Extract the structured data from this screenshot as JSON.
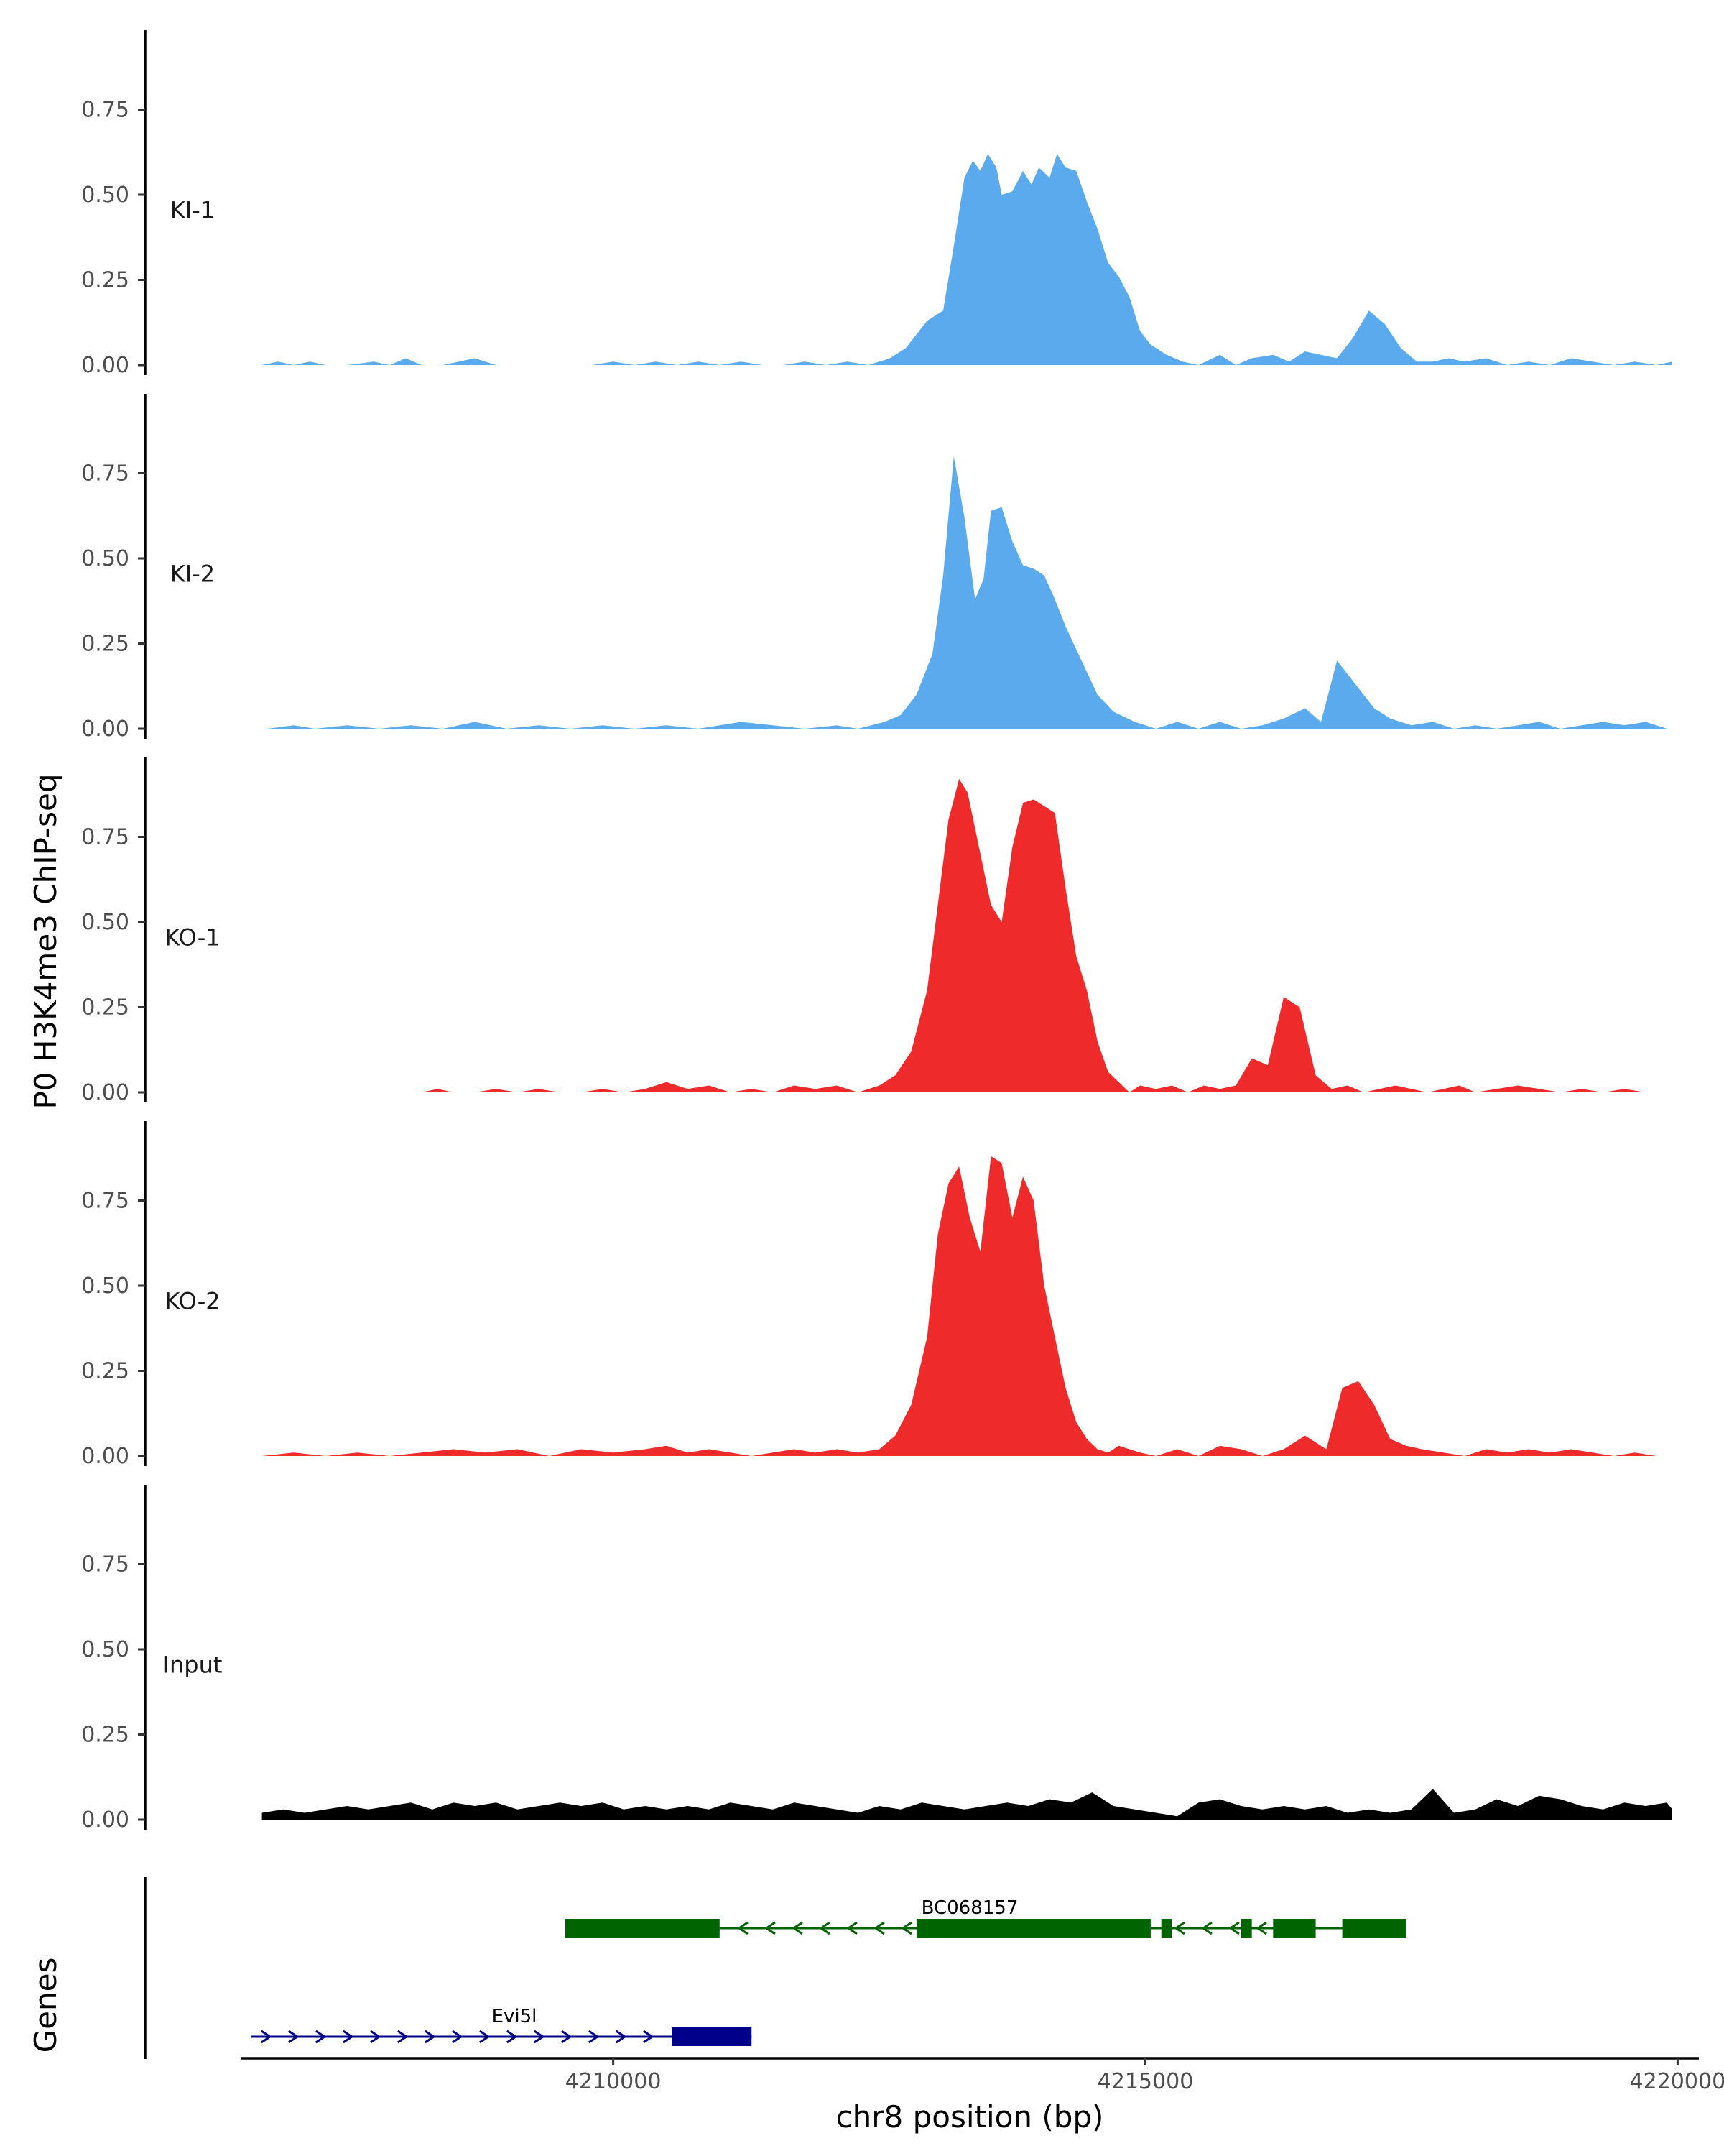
{
  "chart_data": {
    "type": "area",
    "title": "",
    "ylabel": "P0 H3K4me3 ChIP-seq",
    "xlabel": "chr8 position (bp)",
    "xlim": [
      4206500,
      4220200
    ],
    "ylim": [
      0,
      0.97
    ],
    "yticks": [
      0,
      0.25,
      0.5,
      0.75
    ],
    "ytick_labels": [
      "0.00",
      "0.25",
      "0.50",
      "0.75"
    ],
    "xticks": [
      4210000,
      4215000,
      4220000
    ],
    "xtick_labels": [
      "4210000",
      "4215000",
      "4220000"
    ],
    "grid": false,
    "legend": "none",
    "colors": {
      "KI": "#5aaaed",
      "KO": "#ee2a2b",
      "Input": "#000000"
    },
    "tracks": [
      {
        "name": "KI-1",
        "color": "#5aaaed",
        "x": [
          4206700,
          4206850,
          4207000,
          4207150,
          4207300,
          4207500,
          4207750,
          4207900,
          4208050,
          4208200,
          4208400,
          4208550,
          4208700,
          4208900,
          4209100,
          4209300,
          4209600,
          4209800,
          4210000,
          4210200,
          4210400,
          4210600,
          4210800,
          4211000,
          4211200,
          4211400,
          4211600,
          4211800,
          4212000,
          4212200,
          4212400,
          4212600,
          4212750,
          4212950,
          4213100,
          4213200,
          4213300,
          4213380,
          4213450,
          4213520,
          4213600,
          4213650,
          4213750,
          4213850,
          4213930,
          4214000,
          4214100,
          4214170,
          4214250,
          4214350,
          4214450,
          4214550,
          4214650,
          4214750,
          4214850,
          4214950,
          4215050,
          4215200,
          4215350,
          4215500,
          4215700,
          4215850,
          4216000,
          4216200,
          4216350,
          4216500,
          4216650,
          4216800,
          4216950,
          4217100,
          4217250,
          4217400,
          4217550,
          4217700,
          4217850,
          4218000,
          4218200,
          4218400,
          4218600,
          4218800,
          4219000,
          4219200,
          4219400,
          4219600,
          4219800,
          4219950
        ],
        "y": [
          0,
          0.01,
          0,
          0.01,
          0,
          0,
          0.01,
          0,
          0.02,
          0,
          0,
          0.01,
          0.02,
          0,
          0,
          0,
          0,
          0,
          0.01,
          0,
          0.01,
          0,
          0.01,
          0,
          0.01,
          0,
          0,
          0.01,
          0,
          0.01,
          0,
          0.02,
          0.05,
          0.13,
          0.16,
          0.35,
          0.55,
          0.6,
          0.57,
          0.62,
          0.58,
          0.5,
          0.51,
          0.57,
          0.53,
          0.58,
          0.55,
          0.62,
          0.58,
          0.57,
          0.48,
          0.4,
          0.3,
          0.26,
          0.2,
          0.1,
          0.06,
          0.03,
          0.01,
          0,
          0.03,
          0,
          0.02,
          0.03,
          0.01,
          0.04,
          0.03,
          0.02,
          0.08,
          0.16,
          0.12,
          0.05,
          0.01,
          0.01,
          0.02,
          0.01,
          0.02,
          0,
          0.01,
          0,
          0.02,
          0.01,
          0,
          0.01,
          0,
          0.01
        ]
      },
      {
        "name": "KI-2",
        "color": "#5aaaed",
        "x": [
          4206750,
          4207000,
          4207200,
          4207500,
          4207800,
          4208100,
          4208400,
          4208700,
          4209000,
          4209300,
          4209600,
          4209900,
          4210200,
          4210500,
          4210800,
          4211000,
          4211200,
          4211500,
          4211800,
          4212100,
          4212300,
          4212550,
          4212700,
          4212850,
          4213000,
          4213100,
          4213200,
          4213300,
          4213400,
          4213480,
          4213550,
          4213650,
          4213750,
          4213850,
          4213950,
          4214050,
          4214150,
          4214250,
          4214400,
          4214550,
          4214700,
          4214900,
          4215100,
          4215300,
          4215500,
          4215700,
          4215900,
          4216100,
          4216300,
          4216500,
          4216650,
          4216800,
          4217000,
          4217150,
          4217300,
          4217500,
          4217700,
          4217900,
          4218100,
          4218300,
          4218500,
          4218700,
          4218900,
          4219100,
          4219300,
          4219500,
          4219700,
          4219900
        ],
        "y": [
          0,
          0.01,
          0,
          0.01,
          0,
          0.01,
          0,
          0.02,
          0,
          0.01,
          0,
          0.01,
          0,
          0.01,
          0,
          0.01,
          0.02,
          0.01,
          0,
          0.01,
          0,
          0.02,
          0.04,
          0.1,
          0.22,
          0.45,
          0.8,
          0.62,
          0.38,
          0.44,
          0.64,
          0.65,
          0.55,
          0.48,
          0.47,
          0.45,
          0.38,
          0.3,
          0.2,
          0.1,
          0.05,
          0.02,
          0,
          0.02,
          0,
          0.02,
          0,
          0.01,
          0.03,
          0.06,
          0.02,
          0.2,
          0.12,
          0.06,
          0.03,
          0.01,
          0.02,
          0,
          0.01,
          0,
          0.01,
          0.02,
          0,
          0.01,
          0.02,
          0.01,
          0.02,
          0
        ]
      },
      {
        "name": "KO-1",
        "color": "#ee2a2b",
        "x": [
          4208200,
          4208350,
          4208500,
          4208700,
          4208900,
          4209100,
          4209300,
          4209500,
          4209700,
          4209900,
          4210100,
          4210300,
          4210500,
          4210700,
          4210900,
          4211100,
          4211300,
          4211500,
          4211700,
          4211900,
          4212100,
          4212300,
          4212500,
          4212650,
          4212800,
          4212950,
          4213050,
          4213150,
          4213250,
          4213330,
          4213450,
          4213550,
          4213650,
          4213750,
          4213850,
          4213950,
          4214050,
          4214150,
          4214250,
          4214350,
          4214450,
          4214550,
          4214650,
          4214750,
          4214850,
          4214950,
          4215100,
          4215250,
          4215400,
          4215550,
          4215700,
          4215850,
          4216000,
          4216150,
          4216300,
          4216450,
          4216600,
          4216750,
          4216900,
          4217050,
          4217200,
          4217350,
          4217500,
          4217650,
          4217800,
          4217950,
          4218100,
          4218300,
          4218500,
          4218700,
          4218900,
          4219100,
          4219300,
          4219500,
          4219700,
          4219900
        ],
        "y": [
          0,
          0.01,
          0,
          0,
          0.01,
          0,
          0.01,
          0,
          0,
          0.01,
          0,
          0.01,
          0.03,
          0.01,
          0.02,
          0,
          0.01,
          0,
          0.02,
          0.01,
          0.02,
          0,
          0.02,
          0.05,
          0.12,
          0.3,
          0.55,
          0.8,
          0.92,
          0.88,
          0.7,
          0.55,
          0.5,
          0.72,
          0.85,
          0.86,
          0.84,
          0.82,
          0.6,
          0.4,
          0.3,
          0.15,
          0.06,
          0.03,
          0,
          0.02,
          0.01,
          0.02,
          0,
          0.02,
          0.01,
          0.02,
          0.1,
          0.08,
          0.28,
          0.25,
          0.05,
          0.01,
          0.02,
          0,
          0.01,
          0.02,
          0.01,
          0,
          0.01,
          0.02,
          0,
          0.01,
          0.02,
          0.01,
          0,
          0.01,
          0,
          0.01,
          0,
          0
        ]
      },
      {
        "name": "KO-2",
        "color": "#ee2a2b",
        "x": [
          4206700,
          4207000,
          4207300,
          4207600,
          4207900,
          4208200,
          4208500,
          4208800,
          4209100,
          4209400,
          4209700,
          4210000,
          4210300,
          4210500,
          4210700,
          4210900,
          4211100,
          4211300,
          4211500,
          4211700,
          4211900,
          4212100,
          4212300,
          4212500,
          4212650,
          4212800,
          4212950,
          4213050,
          4213150,
          4213250,
          4213350,
          4213450,
          4213550,
          4213650,
          4213750,
          4213850,
          4213950,
          4214050,
          4214150,
          4214250,
          4214350,
          4214450,
          4214550,
          4214650,
          4214750,
          4214850,
          4214950,
          4215100,
          4215300,
          4215500,
          4215700,
          4215900,
          4216100,
          4216300,
          4216500,
          4216700,
          4216850,
          4217000,
          4217150,
          4217300,
          4217450,
          4217600,
          4217800,
          4218000,
          4218200,
          4218400,
          4218600,
          4218800,
          4219000,
          4219200,
          4219400,
          4219600,
          4219800,
          4219950
        ],
        "y": [
          0,
          0.01,
          0,
          0.01,
          0,
          0.01,
          0.02,
          0.01,
          0.02,
          0,
          0.02,
          0.01,
          0.02,
          0.03,
          0.01,
          0.02,
          0.01,
          0,
          0.01,
          0.02,
          0.01,
          0.02,
          0.01,
          0.02,
          0.06,
          0.15,
          0.35,
          0.65,
          0.8,
          0.85,
          0.7,
          0.6,
          0.88,
          0.86,
          0.7,
          0.82,
          0.75,
          0.5,
          0.35,
          0.2,
          0.1,
          0.05,
          0.02,
          0.01,
          0.03,
          0.02,
          0.01,
          0,
          0.02,
          0,
          0.03,
          0.02,
          0,
          0.02,
          0.06,
          0.02,
          0.2,
          0.22,
          0.15,
          0.05,
          0.03,
          0.02,
          0.01,
          0,
          0.02,
          0.01,
          0.02,
          0.01,
          0.02,
          0.01,
          0,
          0.01,
          0,
          0
        ]
      },
      {
        "name": "Input",
        "color": "#000000",
        "x": [
          4206700,
          4206900,
          4207100,
          4207300,
          4207500,
          4207700,
          4207900,
          4208100,
          4208300,
          4208500,
          4208700,
          4208900,
          4209100,
          4209300,
          4209500,
          4209700,
          4209900,
          4210100,
          4210300,
          4210500,
          4210700,
          4210900,
          4211100,
          4211300,
          4211500,
          4211700,
          4211900,
          4212100,
          4212300,
          4212500,
          4212700,
          4212900,
          4213100,
          4213300,
          4213500,
          4213700,
          4213900,
          4214100,
          4214300,
          4214500,
          4214700,
          4214900,
          4215100,
          4215300,
          4215500,
          4215700,
          4215900,
          4216100,
          4216300,
          4216500,
          4216700,
          4216900,
          4217100,
          4217300,
          4217500,
          4217700,
          4217900,
          4218100,
          4218300,
          4218500,
          4218700,
          4218900,
          4219100,
          4219300,
          4219500,
          4219700,
          4219900,
          4219950
        ],
        "y": [
          0.02,
          0.03,
          0.02,
          0.03,
          0.04,
          0.03,
          0.04,
          0.05,
          0.03,
          0.05,
          0.04,
          0.05,
          0.03,
          0.04,
          0.05,
          0.04,
          0.05,
          0.03,
          0.04,
          0.03,
          0.04,
          0.03,
          0.05,
          0.04,
          0.03,
          0.05,
          0.04,
          0.03,
          0.02,
          0.04,
          0.03,
          0.05,
          0.04,
          0.03,
          0.04,
          0.05,
          0.04,
          0.06,
          0.05,
          0.08,
          0.04,
          0.03,
          0.02,
          0.01,
          0.05,
          0.06,
          0.04,
          0.03,
          0.04,
          0.03,
          0.04,
          0.02,
          0.03,
          0.02,
          0.03,
          0.09,
          0.02,
          0.03,
          0.06,
          0.04,
          0.07,
          0.06,
          0.04,
          0.03,
          0.05,
          0.04,
          0.05,
          0.03
        ]
      }
    ],
    "genes": [
      {
        "name": "BC068157",
        "strand": "-",
        "color": "#006400",
        "start": 4209550,
        "end": 4217450,
        "exons": [
          [
            4209550,
            4211000
          ],
          [
            4212850,
            4215050
          ],
          [
            4215150,
            4215250
          ],
          [
            4215900,
            4216000
          ],
          [
            4216200,
            4216600
          ],
          [
            4216850,
            4217450
          ]
        ]
      },
      {
        "name": "Evi5l",
        "strand": "+",
        "color": "#00008b",
        "start": 4206600,
        "end": 4211300,
        "exons": [
          [
            4210550,
            4211300
          ]
        ]
      }
    ],
    "genes_ylabel": "Genes"
  }
}
